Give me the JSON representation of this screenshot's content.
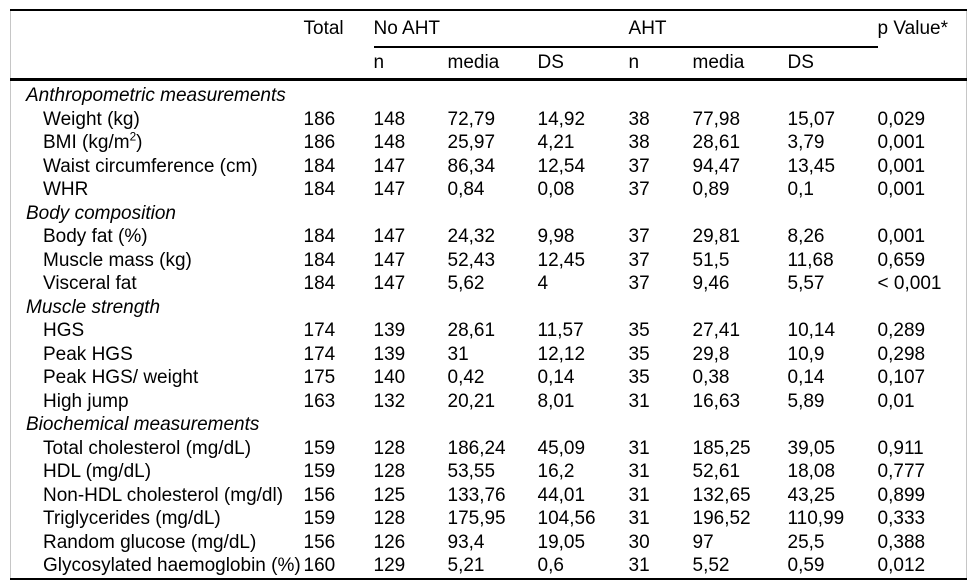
{
  "table": {
    "header": {
      "total": "Total",
      "group_no_aht": "No AHT",
      "group_aht": "AHT",
      "p_value": "p Value*",
      "sub": [
        "n",
        "media",
        "DS",
        "n",
        "media",
        "DS"
      ]
    },
    "sections": [
      {
        "title": "Anthropometric measurements",
        "rows": [
          {
            "label": "Weight (kg)",
            "values": [
              "186",
              "148",
              "72,79",
              "14,92",
              "38",
              "77,98",
              "15,07",
              "0,029"
            ]
          },
          {
            "label": "BMI (kg/m^2)",
            "values": [
              "186",
              "148",
              "25,97",
              "4,21",
              "38",
              "28,61",
              "3,79",
              "0,001"
            ]
          },
          {
            "label": "Waist circumference (cm)",
            "values": [
              "184",
              "147",
              "86,34",
              "12,54",
              "37",
              "94,47",
              "13,45",
              "0,001"
            ]
          },
          {
            "label": "WHR",
            "values": [
              "184",
              "147",
              "0,84",
              "0,08",
              "37",
              "0,89",
              "0,1",
              "0,001"
            ]
          }
        ]
      },
      {
        "title": "Body composition",
        "rows": [
          {
            "label": "Body fat (%)",
            "values": [
              "184",
              "147",
              "24,32",
              "9,98",
              "37",
              "29,81",
              "8,26",
              "0,001"
            ]
          },
          {
            "label": "Muscle mass (kg)",
            "values": [
              "184",
              "147",
              "52,43",
              "12,45",
              "37",
              "51,5",
              "11,68",
              "0,659"
            ]
          },
          {
            "label": "Visceral fat",
            "values": [
              "184",
              "147",
              "5,62",
              "4",
              "37",
              "9,46",
              "5,57",
              "< 0,001"
            ]
          }
        ]
      },
      {
        "title": "Muscle strength",
        "rows": [
          {
            "label": "HGS",
            "values": [
              "174",
              "139",
              "28,61",
              "11,57",
              "35",
              "27,41",
              "10,14",
              "0,289"
            ]
          },
          {
            "label": "Peak HGS",
            "values": [
              "174",
              "139",
              "31",
              "12,12",
              "35",
              "29,8",
              "10,9",
              "0,298"
            ]
          },
          {
            "label": "Peak HGS/ weight",
            "values": [
              "175",
              "140",
              "0,42",
              "0,14",
              "35",
              "0,38",
              "0,14",
              "0,107"
            ]
          },
          {
            "label": "High jump",
            "values": [
              "163",
              "132",
              "20,21",
              "8,01",
              "31",
              "16,63",
              "5,89",
              "0,01"
            ]
          }
        ]
      },
      {
        "title": "Biochemical measurements",
        "rows": [
          {
            "label": "Total cholesterol (mg/dL)",
            "values": [
              "159",
              "128",
              "186,24",
              "45,09",
              "31",
              "185,25",
              "39,05",
              "0,911"
            ]
          },
          {
            "label": "HDL (mg/dL)",
            "values": [
              "159",
              "128",
              "53,55",
              "16,2",
              "31",
              "52,61",
              "18,08",
              "0,777"
            ]
          },
          {
            "label": "Non-HDL cholesterol (mg/dl)",
            "values": [
              "156",
              "125",
              "133,76",
              "44,01",
              "31",
              "132,65",
              "43,25",
              "0,899"
            ]
          },
          {
            "label": "Triglycerides (mg/dL)",
            "values": [
              "159",
              "128",
              "175,95",
              "104,56",
              "31",
              "196,52",
              "110,99",
              "0,333"
            ]
          },
          {
            "label": "Random glucose (mg/dL)",
            "values": [
              "156",
              "126",
              "93,4",
              "19,05",
              "30",
              "97",
              "25,5",
              "0,388"
            ]
          },
          {
            "label": "Glycosylated haemoglobin (%)",
            "values": [
              "160",
              "129",
              "5,21",
              "0,6",
              "31",
              "5,52",
              "0,59",
              "0,012"
            ]
          }
        ]
      }
    ]
  }
}
